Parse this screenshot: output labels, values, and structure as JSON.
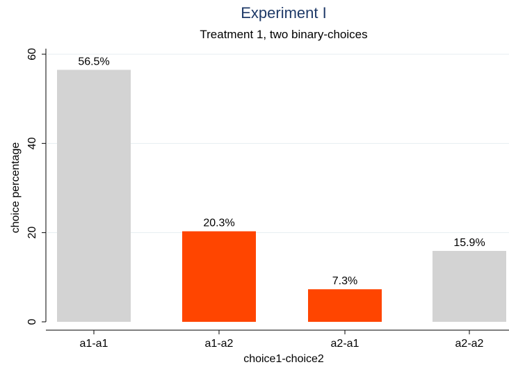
{
  "chart_data": {
    "type": "bar",
    "title": "Experiment I",
    "subtitle": "Treatment 1, two binary-choices",
    "xlabel": "choice1-choice2",
    "ylabel": "choice percentage",
    "categories": [
      "a1-a1",
      "a1-a2",
      "a2-a1",
      "a2-a2"
    ],
    "values": [
      56.5,
      20.3,
      7.3,
      15.9
    ],
    "value_labels": [
      "56.5%",
      "20.3%",
      "7.3%",
      "15.9%"
    ],
    "bar_colors": [
      "#d3d3d3",
      "#ff4500",
      "#ff4500",
      "#d3d3d3"
    ],
    "yticks": [
      0,
      20,
      40,
      60
    ],
    "ylim": [
      0,
      60
    ],
    "grid": true,
    "legend": "none"
  }
}
